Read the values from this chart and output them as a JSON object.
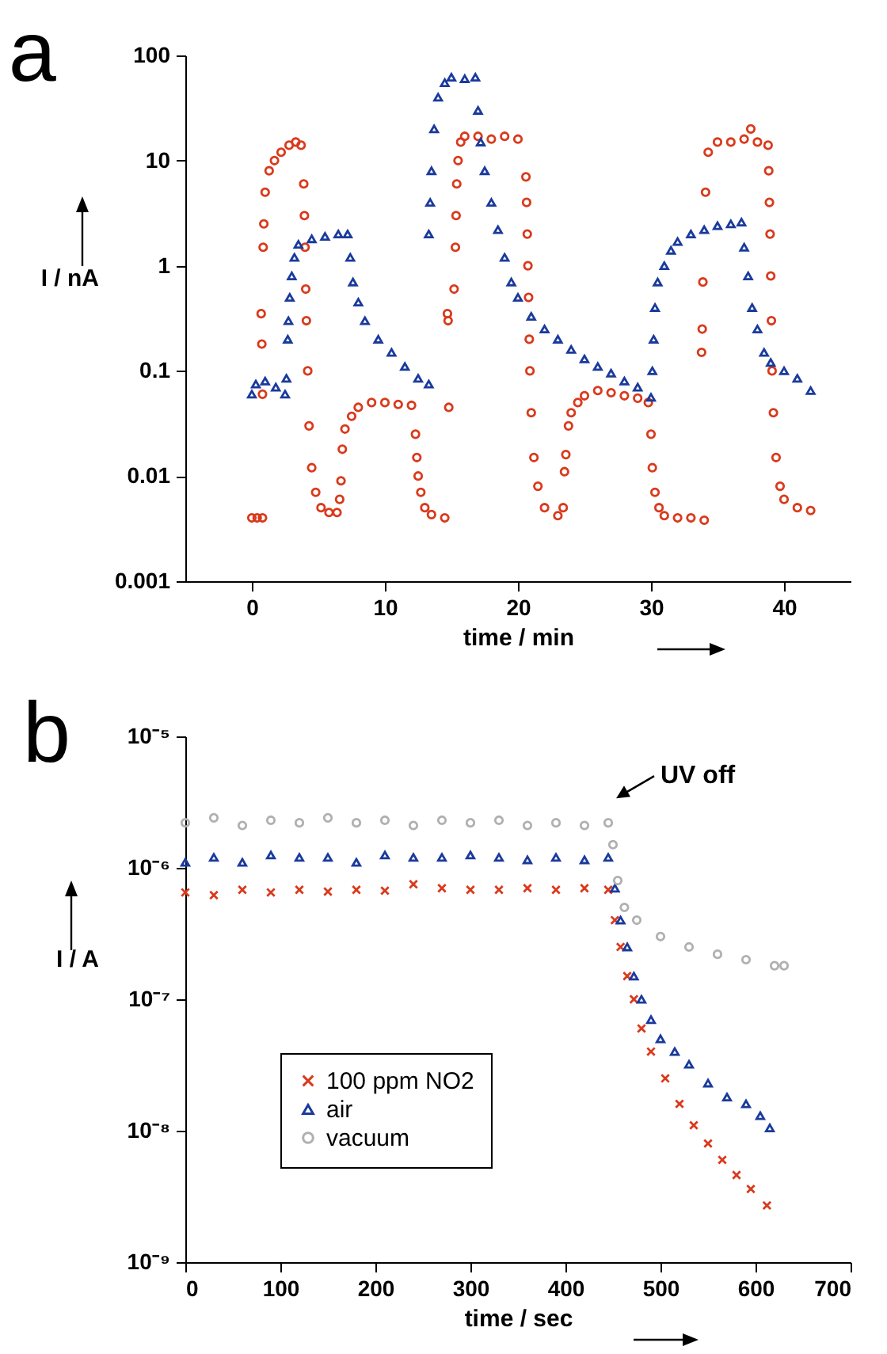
{
  "chart_data": [
    {
      "type": "scatter",
      "title": "a",
      "xlabel": "time / min",
      "ylabel": "I / nA",
      "log": "y",
      "xlim": [
        -5,
        45
      ],
      "xticks": [
        0,
        10,
        20,
        30,
        40
      ],
      "ylim": [
        0.001,
        100
      ],
      "yticks": [
        0.001,
        0.01,
        0.1,
        1,
        10,
        100
      ],
      "series": [
        {
          "color": "#d93a1c",
          "marker": "circle",
          "x": [
            0,
            0.4,
            0.8,
            0.7,
            0.75,
            0.8,
            0.85,
            0.9,
            1,
            1.3,
            1.7,
            2.2,
            2.8,
            3.3,
            3.7,
            3.9,
            3.95,
            4,
            4.05,
            4.1,
            4.2,
            4.3,
            4.5,
            4.8,
            5.2,
            5.8,
            6.4,
            6.6,
            6.7,
            6.8,
            7,
            7.5,
            8,
            9,
            10,
            11,
            12,
            12.3,
            12.4,
            12.5,
            12.7,
            13,
            13.5,
            14.5,
            14.7,
            14.75,
            14.8,
            15.2,
            15.3,
            15.35,
            15.4,
            15.5,
            15.7,
            16,
            17,
            18,
            19,
            20,
            20.6,
            20.65,
            20.7,
            20.75,
            20.8,
            20.85,
            20.9,
            21,
            21.2,
            21.5,
            22,
            23,
            23.4,
            23.5,
            23.6,
            23.8,
            24,
            24.5,
            25,
            26,
            27,
            28,
            29,
            29.8,
            30,
            30.1,
            30.3,
            30.6,
            31,
            32,
            33,
            34,
            33.8,
            33.85,
            33.9,
            34.1,
            34.3,
            35,
            36,
            37,
            37.5,
            38,
            38.8,
            38.85,
            38.9,
            38.95,
            39,
            39.05,
            39.1,
            39.2,
            39.4,
            39.7,
            40,
            41,
            42
          ],
          "values": [
            0.004,
            0.004,
            0.004,
            0.35,
            0.18,
            0.06,
            1.5,
            2.5,
            5,
            8,
            10,
            12,
            14,
            15,
            14,
            6,
            3,
            1.5,
            0.6,
            0.3,
            0.1,
            0.03,
            0.012,
            0.007,
            0.005,
            0.0045,
            0.0045,
            0.006,
            0.009,
            0.018,
            0.028,
            0.037,
            0.045,
            0.05,
            0.05,
            0.048,
            0.047,
            0.025,
            0.015,
            0.01,
            0.007,
            0.005,
            0.0043,
            0.004,
            0.35,
            0.3,
            0.045,
            0.6,
            1.5,
            3,
            6,
            10,
            15,
            17,
            17,
            16,
            17,
            16,
            7,
            4,
            2,
            1,
            0.5,
            0.2,
            0.1,
            0.04,
            0.015,
            0.008,
            0.005,
            0.0042,
            0.005,
            0.011,
            0.016,
            0.03,
            0.04,
            0.05,
            0.058,
            0.065,
            0.062,
            0.058,
            0.055,
            0.05,
            0.025,
            0.012,
            0.007,
            0.005,
            0.0042,
            0.004,
            0.004,
            0.0038,
            0.15,
            0.25,
            0.7,
            5,
            12,
            15,
            15,
            16,
            20,
            15,
            14,
            8,
            4,
            2,
            0.8,
            0.3,
            0.1,
            0.04,
            0.015,
            0.008,
            0.006,
            0.005,
            0.0047
          ]
        },
        {
          "color": "#1a3a9c",
          "marker": "triangle",
          "x": [
            0,
            0.3,
            1,
            1.8,
            2.5,
            2.6,
            2.7,
            2.75,
            2.85,
            3,
            3.2,
            3.5,
            4.5,
            5.5,
            6.5,
            7.2,
            7.4,
            7.6,
            8,
            8.5,
            9.5,
            10.5,
            11.5,
            12.5,
            13.3,
            13.3,
            13.4,
            13.5,
            13.7,
            14,
            14.5,
            15,
            16,
            16.8,
            17,
            17.2,
            17.5,
            18,
            18.5,
            19,
            19.5,
            20,
            21,
            22,
            23,
            24,
            25,
            26,
            27,
            28,
            29,
            30,
            30.1,
            30.2,
            30.3,
            30.5,
            31,
            31.5,
            32,
            33,
            34,
            35,
            36,
            36.8,
            37,
            37.3,
            37.6,
            38,
            38.5,
            39,
            40,
            41,
            42
          ],
          "values": [
            0.06,
            0.075,
            0.08,
            0.07,
            0.06,
            0.085,
            0.2,
            0.3,
            0.5,
            0.8,
            1.2,
            1.6,
            1.8,
            1.9,
            2,
            2,
            1.2,
            0.7,
            0.45,
            0.3,
            0.2,
            0.15,
            0.11,
            0.085,
            0.075,
            2,
            4,
            8,
            20,
            40,
            55,
            62,
            60,
            62,
            30,
            15,
            8,
            4,
            2.2,
            1.2,
            0.7,
            0.5,
            0.33,
            0.25,
            0.2,
            0.16,
            0.13,
            0.11,
            0.095,
            0.08,
            0.07,
            0.056,
            0.1,
            0.2,
            0.4,
            0.7,
            1,
            1.4,
            1.7,
            2,
            2.2,
            2.4,
            2.5,
            2.6,
            1.5,
            0.8,
            0.4,
            0.25,
            0.15,
            0.12,
            0.1,
            0.085,
            0.065
          ]
        }
      ]
    },
    {
      "type": "scatter",
      "title": "b",
      "xlabel": "time / sec",
      "ylabel": "I / A",
      "log": "y",
      "legend": "bottom left",
      "xlim": [
        0,
        700
      ],
      "xticks": [
        0,
        100,
        200,
        300,
        400,
        500,
        600,
        700
      ],
      "ylim": [
        1e-09,
        1e-05
      ],
      "yticks": [
        {
          "value": 1e-09,
          "label": "10⁻⁹"
        },
        {
          "value": 1e-08,
          "label": "10⁻⁸"
        },
        {
          "value": 1e-07,
          "label": "10⁻⁷"
        },
        {
          "value": 1e-06,
          "label": "10⁻⁶"
        },
        {
          "value": 1e-05,
          "label": "10⁻⁵"
        }
      ],
      "annotations": [
        {
          "text": "UV off",
          "x": 450,
          "y": 2.2e-06
        }
      ],
      "series": [
        {
          "name": "100 ppm NO2",
          "color": "#d93a1c",
          "marker": "cross",
          "x": [
            0,
            30,
            60,
            90,
            120,
            150,
            180,
            210,
            240,
            270,
            300,
            330,
            360,
            390,
            420,
            445,
            452,
            458,
            465,
            472,
            480,
            490,
            505,
            520,
            535,
            550,
            565,
            580,
            595,
            612
          ],
          "values": [
            6.5e-07,
            6.2e-07,
            6.8e-07,
            6.5e-07,
            6.8e-07,
            6.6e-07,
            6.8e-07,
            6.7e-07,
            7.5e-07,
            7e-07,
            6.8e-07,
            6.8e-07,
            7e-07,
            6.8e-07,
            7e-07,
            6.8e-07,
            4e-07,
            2.5e-07,
            1.5e-07,
            1e-07,
            6e-08,
            4e-08,
            2.5e-08,
            1.6e-08,
            1.1e-08,
            8e-09,
            6e-09,
            4.6e-09,
            3.6e-09,
            2.7e-09
          ]
        },
        {
          "name": "air",
          "color": "#1a3a9c",
          "marker": "triangle",
          "x": [
            0,
            30,
            60,
            90,
            120,
            150,
            180,
            210,
            240,
            270,
            300,
            330,
            360,
            390,
            420,
            445,
            452,
            458,
            465,
            472,
            480,
            490,
            500,
            515,
            530,
            550,
            570,
            590,
            605,
            615
          ],
          "values": [
            1.1e-06,
            1.2e-06,
            1.1e-06,
            1.25e-06,
            1.2e-06,
            1.2e-06,
            1.1e-06,
            1.25e-06,
            1.2e-06,
            1.2e-06,
            1.25e-06,
            1.2e-06,
            1.15e-06,
            1.2e-06,
            1.15e-06,
            1.2e-06,
            7e-07,
            4e-07,
            2.5e-07,
            1.5e-07,
            1e-07,
            7e-08,
            5e-08,
            4e-08,
            3.2e-08,
            2.3e-08,
            1.8e-08,
            1.6e-08,
            1.3e-08,
            1.05e-08
          ]
        },
        {
          "name": "vacuum",
          "color": "#b0b0b0",
          "marker": "circle",
          "x": [
            0,
            30,
            60,
            90,
            120,
            150,
            180,
            210,
            240,
            270,
            300,
            330,
            360,
            390,
            420,
            445,
            450,
            455,
            462,
            475,
            500,
            530,
            560,
            590,
            620,
            630
          ],
          "values": [
            2.2e-06,
            2.4e-06,
            2.1e-06,
            2.3e-06,
            2.2e-06,
            2.4e-06,
            2.2e-06,
            2.3e-06,
            2.1e-06,
            2.3e-06,
            2.2e-06,
            2.3e-06,
            2.1e-06,
            2.2e-06,
            2.1e-06,
            2.2e-06,
            1.5e-06,
            8e-07,
            5e-07,
            4e-07,
            3e-07,
            2.5e-07,
            2.2e-07,
            2e-07,
            1.8e-07,
            1.8e-07
          ]
        }
      ]
    }
  ]
}
